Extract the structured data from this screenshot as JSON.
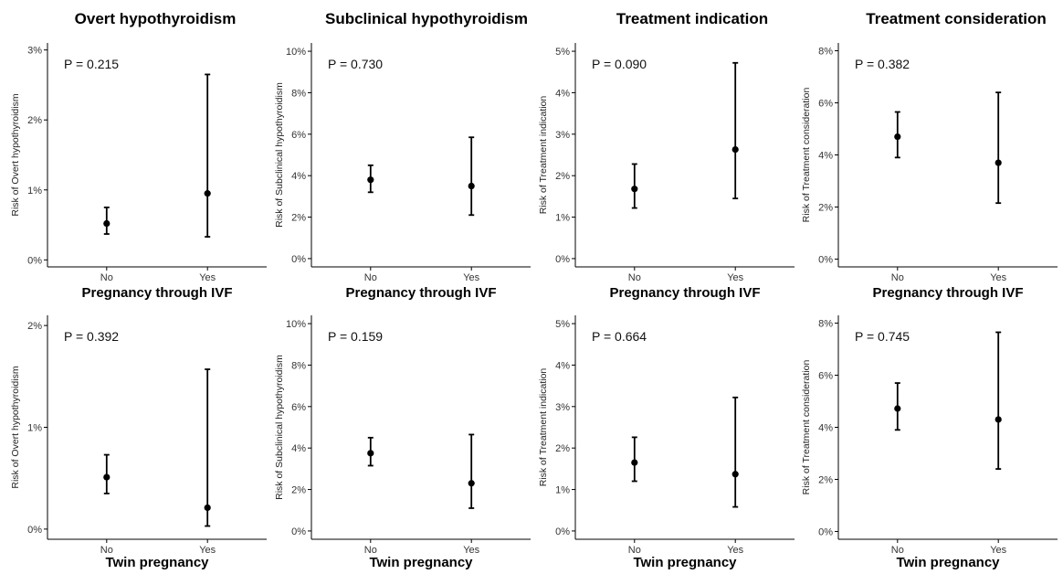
{
  "column_titles": [
    "Overt hypothyroidism",
    "Subclinical hypothyroidism",
    "Treatment indication",
    "Treatment consideration"
  ],
  "chart_data": [
    {
      "type": "scatter",
      "variant": "point-with-error-bars",
      "title": "Overt hypothyroidism",
      "xlabel": "Pregnancy through IVF",
      "ylabel": "Risk of Overt hypothyroidism",
      "categories": [
        "No",
        "Yes"
      ],
      "values": [
        0.52,
        0.95
      ],
      "lower": [
        0.37,
        0.33
      ],
      "upper": [
        0.75,
        2.65
      ],
      "ylim": [
        -0.1,
        3.1
      ],
      "yticks": [
        0,
        1,
        2,
        3
      ],
      "ytick_labels": [
        "0%",
        "1%",
        "2%",
        "3%"
      ],
      "annotation": "P = 0.215",
      "grid": false
    },
    {
      "type": "scatter",
      "variant": "point-with-error-bars",
      "title": "Subclinical hypothyroidism",
      "xlabel": "Pregnancy through IVF",
      "ylabel": "Risk of Subclinical hypothyroidism",
      "categories": [
        "No",
        "Yes"
      ],
      "values": [
        3.8,
        3.5
      ],
      "lower": [
        3.2,
        2.1
      ],
      "upper": [
        4.5,
        5.85
      ],
      "ylim": [
        -0.4,
        10.4
      ],
      "yticks": [
        0,
        2,
        4,
        6,
        8,
        10
      ],
      "ytick_labels": [
        "0%",
        "2%",
        "4%",
        "6%",
        "8%",
        "10%"
      ],
      "annotation": "P = 0.730",
      "grid": false
    },
    {
      "type": "scatter",
      "variant": "point-with-error-bars",
      "title": "Treatment indication",
      "xlabel": "Pregnancy through IVF",
      "ylabel": "Risk of Treatment indication",
      "categories": [
        "No",
        "Yes"
      ],
      "values": [
        1.68,
        2.63
      ],
      "lower": [
        1.22,
        1.45
      ],
      "upper": [
        2.28,
        4.72
      ],
      "ylim": [
        -0.2,
        5.2
      ],
      "yticks": [
        0,
        1,
        2,
        3,
        4,
        5
      ],
      "ytick_labels": [
        "0%",
        "1%",
        "2%",
        "3%",
        "4%",
        "5%"
      ],
      "annotation": "P = 0.090",
      "grid": false
    },
    {
      "type": "scatter",
      "variant": "point-with-error-bars",
      "title": "Treatment consideration",
      "xlabel": "Pregnancy through IVF",
      "ylabel": "Risk of Treatment consideration",
      "categories": [
        "No",
        "Yes"
      ],
      "values": [
        4.7,
        3.7
      ],
      "lower": [
        3.9,
        2.15
      ],
      "upper": [
        5.65,
        6.4
      ],
      "ylim": [
        -0.3,
        8.3
      ],
      "yticks": [
        0,
        2,
        4,
        6,
        8
      ],
      "ytick_labels": [
        "0%",
        "2%",
        "4%",
        "6%",
        "8%"
      ],
      "annotation": "P = 0.382",
      "grid": false
    },
    {
      "type": "scatter",
      "variant": "point-with-error-bars",
      "title": "",
      "xlabel": "Twin pregnancy",
      "ylabel": "Risk of Overt hypothyroidism",
      "categories": [
        "No",
        "Yes"
      ],
      "values": [
        0.51,
        0.21
      ],
      "lower": [
        0.35,
        0.03
      ],
      "upper": [
        0.73,
        1.57
      ],
      "ylim": [
        -0.1,
        2.1
      ],
      "yticks": [
        0,
        1,
        2
      ],
      "ytick_labels": [
        "0%",
        "1%",
        "2%"
      ],
      "annotation": "P = 0.392",
      "grid": false
    },
    {
      "type": "scatter",
      "variant": "point-with-error-bars",
      "title": "",
      "xlabel": "Twin pregnancy",
      "ylabel": "Risk of Subclinical hypothyroidism",
      "categories": [
        "No",
        "Yes"
      ],
      "values": [
        3.75,
        2.3
      ],
      "lower": [
        3.15,
        1.1
      ],
      "upper": [
        4.5,
        4.65
      ],
      "ylim": [
        -0.4,
        10.4
      ],
      "yticks": [
        0,
        2,
        4,
        6,
        8,
        10
      ],
      "ytick_labels": [
        "0%",
        "2%",
        "4%",
        "6%",
        "8%",
        "10%"
      ],
      "annotation": "P = 0.159",
      "grid": false
    },
    {
      "type": "scatter",
      "variant": "point-with-error-bars",
      "title": "",
      "xlabel": "Twin pregnancy",
      "ylabel": "Risk of Treatment indication",
      "categories": [
        "No",
        "Yes"
      ],
      "values": [
        1.65,
        1.37
      ],
      "lower": [
        1.2,
        0.58
      ],
      "upper": [
        2.26,
        3.22
      ],
      "ylim": [
        -0.2,
        5.2
      ],
      "yticks": [
        0,
        1,
        2,
        3,
        4,
        5
      ],
      "ytick_labels": [
        "0%",
        "1%",
        "2%",
        "3%",
        "4%",
        "5%"
      ],
      "annotation": "P = 0.664",
      "grid": false
    },
    {
      "type": "scatter",
      "variant": "point-with-error-bars",
      "title": "",
      "xlabel": "Twin pregnancy",
      "ylabel": "Risk of Treatment consideration",
      "categories": [
        "No",
        "Yes"
      ],
      "values": [
        4.72,
        4.3
      ],
      "lower": [
        3.9,
        2.4
      ],
      "upper": [
        5.7,
        7.65
      ],
      "ylim": [
        -0.3,
        8.3
      ],
      "yticks": [
        0,
        2,
        4,
        6,
        8
      ],
      "ytick_labels": [
        "0%",
        "2%",
        "4%",
        "6%",
        "8%"
      ],
      "annotation": "P = 0.745",
      "grid": false
    }
  ]
}
